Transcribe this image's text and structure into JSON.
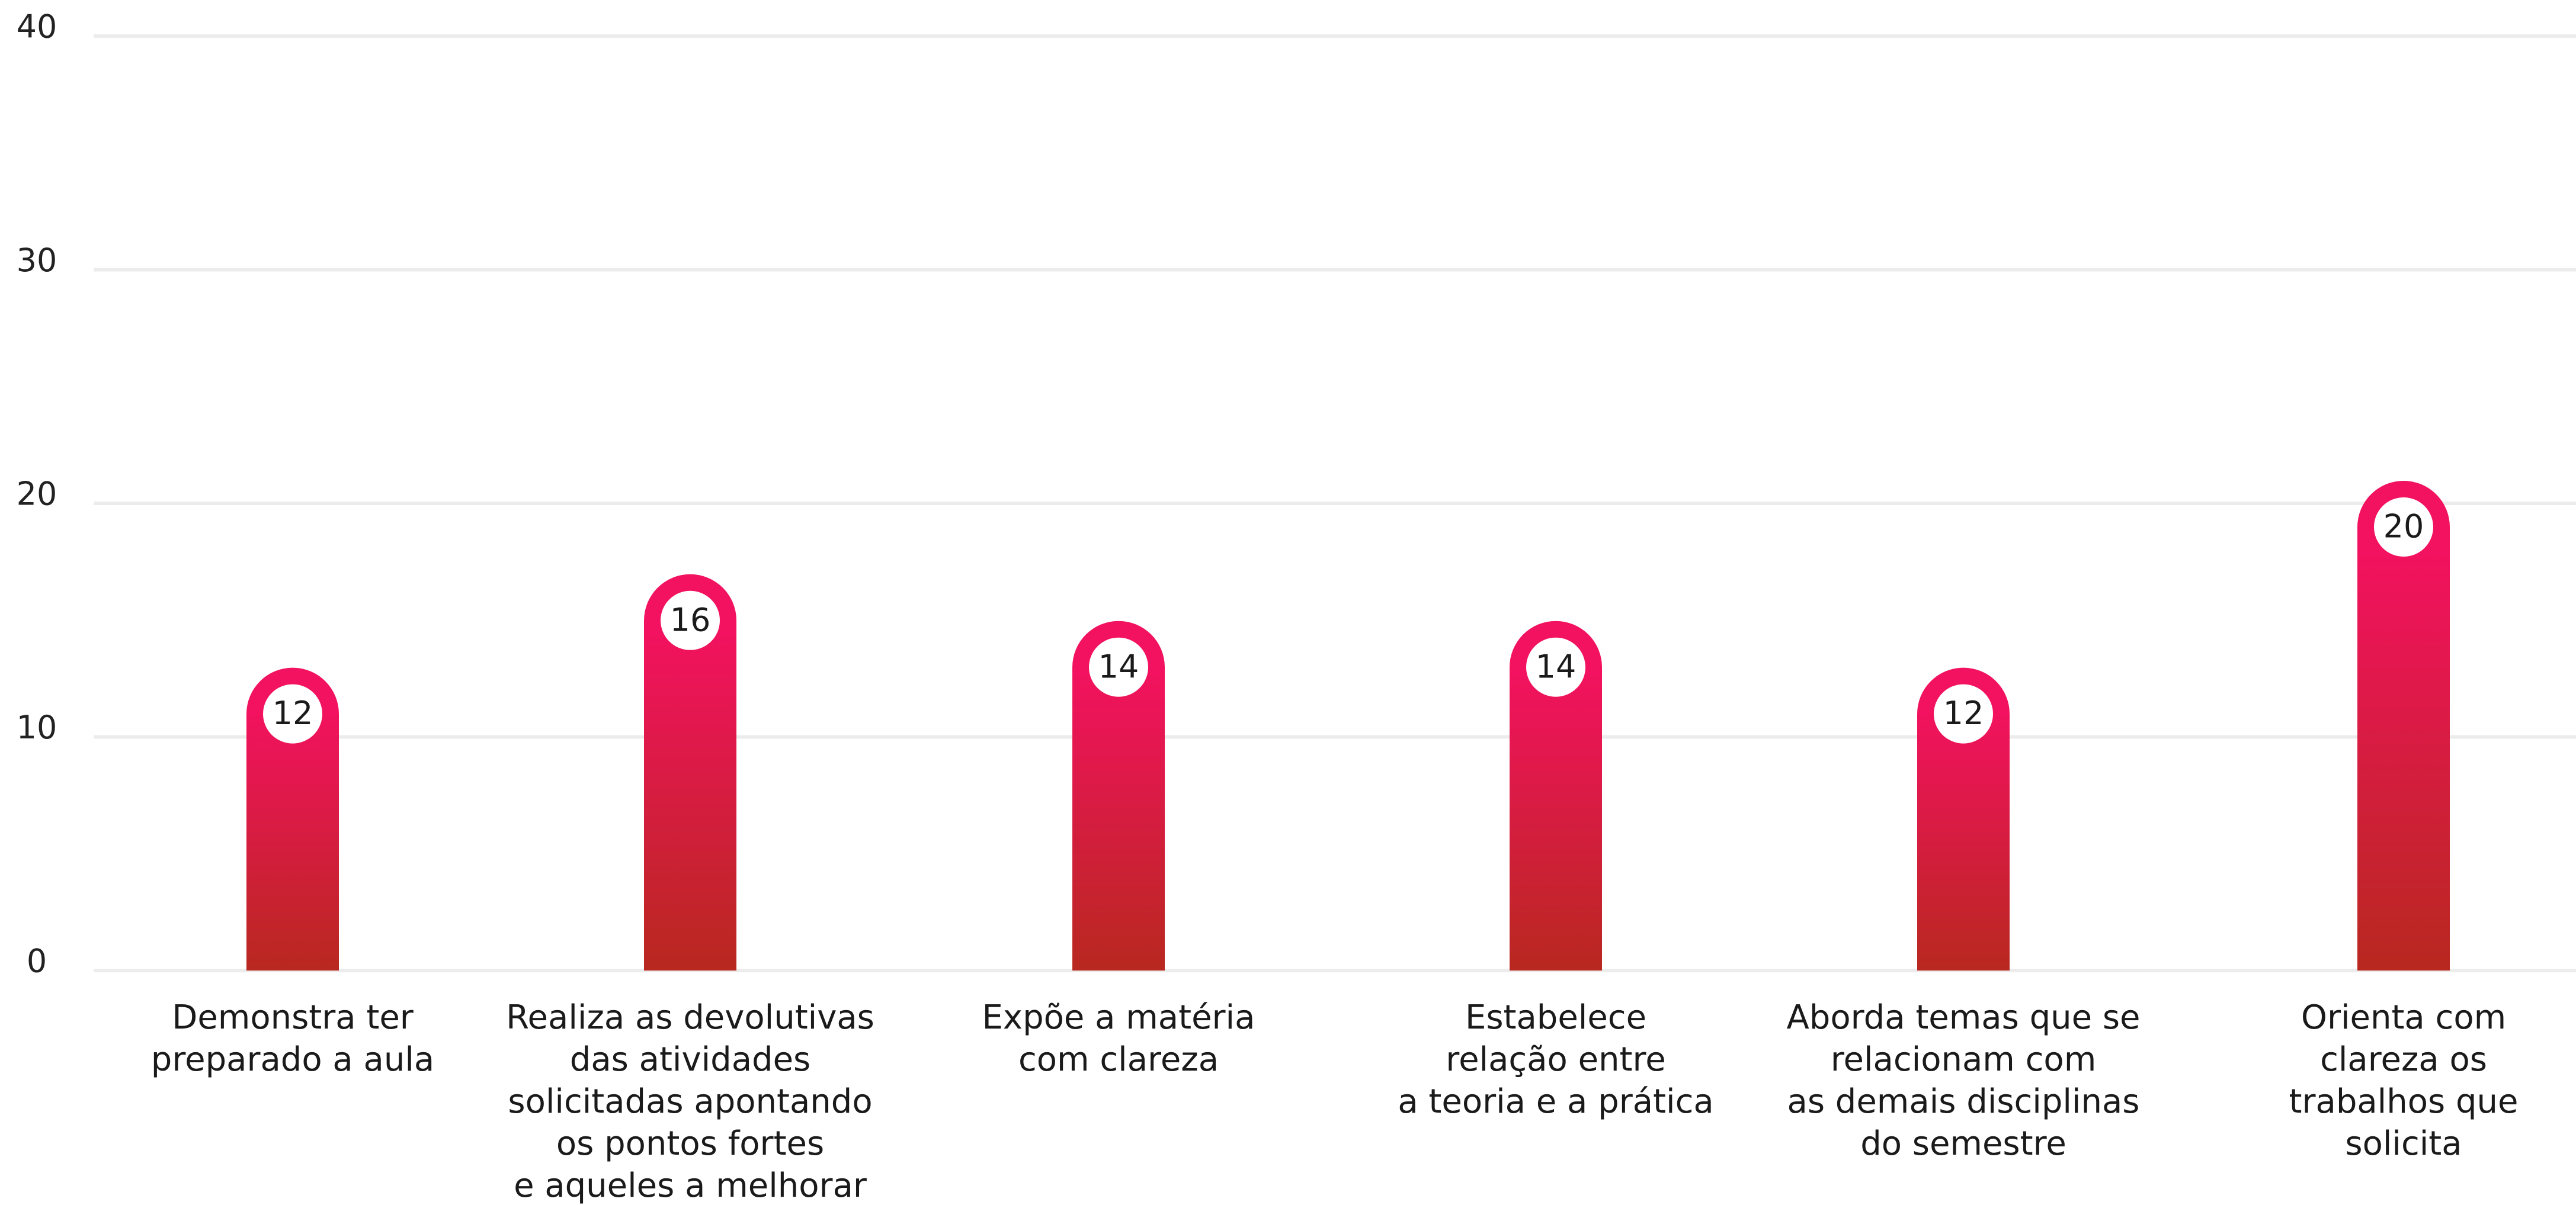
{
  "chart_data": {
    "type": "bar",
    "categories": [
      [
        "Demonstra ter",
        "preparado a aula"
      ],
      [
        "Realiza as devolutivas",
        "das atividades",
        "solicitadas apontando",
        "os pontos fortes",
        "e aqueles a melhorar"
      ],
      [
        "Expõe a matéria",
        "com clareza"
      ],
      [
        "Estabelece",
        "relação entre",
        "a teoria e a prática"
      ],
      [
        "Aborda temas que se",
        "relacionam com",
        "as demais disciplinas",
        "do semestre"
      ],
      [
        "Orienta com",
        "clareza os",
        "trabalhos que",
        "solicita"
      ]
    ],
    "values": [
      12,
      16,
      14,
      14,
      12,
      20
    ],
    "colors": [
      "#f2125f",
      "#b8281f"
    ],
    "ylim": [
      0,
      40
    ],
    "yticks": [
      0,
      10,
      20,
      30,
      40
    ],
    "grid": true
  }
}
